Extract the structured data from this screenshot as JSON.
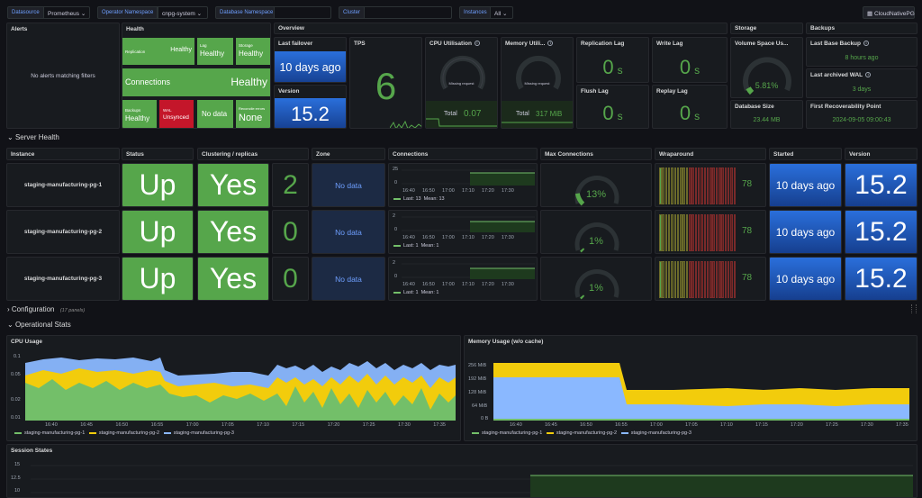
{
  "variables": {
    "datasource_label": "Datasource",
    "datasource_value": "Prometheus",
    "operator_ns_label": "Operator Namespace",
    "operator_ns_value": "cnpg-system",
    "db_ns_label": "Database Namespace",
    "db_ns_value": "",
    "cluster_label": "Cluster",
    "cluster_value": "",
    "instances_label": "Instances",
    "instances_value": "All",
    "link_button": "CloudNativePG"
  },
  "colors": {
    "green": "#56a64b",
    "red": "#c4162a",
    "blue": "#1f60c4",
    "yellow": "#f2cc0c",
    "series_green": "#73bf69",
    "series_yellow": "#f2cc0c",
    "series_blue": "#8ab8ff"
  },
  "alerts": {
    "title": "Alerts",
    "empty": "No alerts matching filters"
  },
  "health": {
    "title": "Health",
    "tiles": [
      {
        "label": "Replication",
        "value": "Healthy"
      },
      {
        "label": "Lag",
        "value": "Healthy"
      },
      {
        "label": "Storage",
        "value": "Healthy"
      },
      {
        "label": "Connections",
        "value": "Healthy"
      },
      {
        "label": "Backups",
        "value": "Healthy"
      },
      {
        "label": "WAL",
        "value": "Unsynced"
      },
      {
        "label": "",
        "value": "No data"
      },
      {
        "label": "Reconcile errors",
        "value": "None"
      }
    ]
  },
  "overview": {
    "title": "Overview",
    "last_failover_label": "Last failover",
    "last_failover_value": "10 days ago",
    "version_label": "Version",
    "version_value": "15.2",
    "tps_label": "TPS",
    "tps_value": "6",
    "cpu_label": "CPU Utilisation",
    "cpu_missing": "Missing request",
    "cpu_total_label": "Total",
    "cpu_total_value": "0.07",
    "mem_label": "Memory Utili...",
    "mem_missing": "Missing request",
    "mem_total_label": "Total",
    "mem_total_value": "317 MiB",
    "replication_lag_label": "Replication Lag",
    "replication_lag_value": "0",
    "replication_lag_unit": "s",
    "write_lag_label": "Write Lag",
    "write_lag_value": "0",
    "write_lag_unit": "s",
    "flush_lag_label": "Flush Lag",
    "flush_lag_value": "0",
    "flush_lag_unit": "s",
    "replay_lag_label": "Replay Lag",
    "replay_lag_value": "0",
    "replay_lag_unit": "s"
  },
  "storage": {
    "title": "Storage",
    "volume_label": "Volume Space Us...",
    "volume_value": "5.81%",
    "volume_fraction": 0.0581,
    "dbsize_label": "Database Size",
    "dbsize_value": "23.44 MB"
  },
  "backups": {
    "title": "Backups",
    "last_base_label": "Last Base Backup",
    "last_base_value": "8 hours ago",
    "last_wal_label": "Last archived WAL",
    "last_wal_value": "3 days",
    "first_recov_label": "First Recoverability Point",
    "first_recov_value": "2024-09-05 09:00:43"
  },
  "server_health": {
    "title": "Server Health",
    "headers": {
      "instance": "Instance",
      "status": "Status",
      "clustering": "Clustering / replicas",
      "zone": "Zone",
      "connections": "Connections",
      "max_connections": "Max Connections",
      "wraparound": "Wraparound",
      "started": "Started",
      "version": "Version"
    },
    "conn_times": [
      "16:40",
      "16:50",
      "17:00",
      "17:10",
      "17:20",
      "17:30"
    ],
    "rows": [
      {
        "instance": "staging-manufacturing-pg-1",
        "status": "Up",
        "clustering": "Yes",
        "replicas": "2",
        "zone": "No data",
        "conn_ymax": "25",
        "conn_ymid": "0",
        "conn_last": "Last: 13",
        "conn_mean": "Mean: 13",
        "max_conn": "13%",
        "max_conn_fraction": 0.13,
        "wraparound": "78",
        "started": "10 days ago",
        "version": "15.2"
      },
      {
        "instance": "staging-manufacturing-pg-2",
        "status": "Up",
        "clustering": "Yes",
        "replicas": "0",
        "zone": "No data",
        "conn_ymax": "2",
        "conn_ymid": "0",
        "conn_last": "Last: 1",
        "conn_mean": "Mean: 1",
        "max_conn": "1%",
        "max_conn_fraction": 0.01,
        "wraparound": "78",
        "started": "10 days ago",
        "version": "15.2"
      },
      {
        "instance": "staging-manufacturing-pg-3",
        "status": "Up",
        "clustering": "Yes",
        "replicas": "0",
        "zone": "No data",
        "conn_ymax": "2",
        "conn_ymid": "0",
        "conn_last": "Last: 1",
        "conn_mean": "Mean: 1",
        "max_conn": "1%",
        "max_conn_fraction": 0.01,
        "wraparound": "78",
        "started": "10 days ago",
        "version": "15.2"
      }
    ]
  },
  "configuration": {
    "title": "Configuration",
    "count": "(17 panels)"
  },
  "operational": {
    "title": "Operational Stats"
  },
  "cpu_usage": {
    "title": "CPU Usage",
    "yticks": [
      "0.1",
      "0.05",
      "0.02",
      "0.01"
    ],
    "xticks": [
      "16:40",
      "16:45",
      "16:50",
      "16:55",
      "17:00",
      "17:05",
      "17:10",
      "17:15",
      "17:20",
      "17:25",
      "17:30",
      "17:35"
    ]
  },
  "memory_usage": {
    "title": "Memory Usage (w/o cache)",
    "yticks": [
      "256 MiB",
      "192 MiB",
      "128 MiB",
      "64 MiB",
      "0 B"
    ],
    "xticks": [
      "16:40",
      "16:45",
      "16:50",
      "16:55",
      "17:00",
      "17:05",
      "17:10",
      "17:15",
      "17:20",
      "17:25",
      "17:30",
      "17:35"
    ]
  },
  "legend": [
    "staging-manufacturing-pg-1",
    "staging-manufacturing-pg-2",
    "staging-manufacturing-pg-3"
  ],
  "session_states": {
    "title": "Session States",
    "yticks": [
      "15",
      "12.5",
      "10"
    ]
  }
}
